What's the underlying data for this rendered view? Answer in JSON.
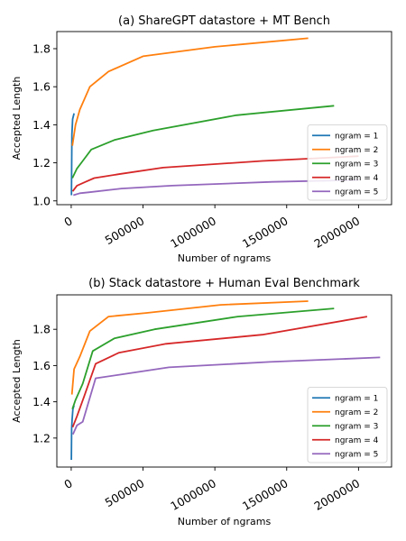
{
  "chart_data": [
    {
      "type": "line",
      "title": "(a) ShareGPT datastore + MT Bench",
      "xlabel": "Number of ngrams",
      "ylabel": "Accepted Length",
      "xlim": [
        -100000,
        2230000
      ],
      "ylim": [
        0.98,
        1.89
      ],
      "xticks": [
        0,
        500000,
        1000000,
        1500000,
        2000000
      ],
      "xtick_labels": [
        "0",
        "500000",
        "1000000",
        "1500000",
        "2000000"
      ],
      "yticks": [
        1.0,
        1.2,
        1.4,
        1.6,
        1.8
      ],
      "ytick_labels": [
        "1.0",
        "1.2",
        "1.4",
        "1.6",
        "1.8"
      ],
      "legend": "lower-right",
      "grid": false,
      "series": [
        {
          "name": "ngram = 1",
          "color": "#1f77b4",
          "x": [
            2000,
            5000,
            10000,
            20000
          ],
          "y": [
            1.03,
            1.35,
            1.43,
            1.46
          ]
        },
        {
          "name": "ngram = 2",
          "color": "#ff7f0e",
          "x": [
            8000,
            30000,
            60000,
            130000,
            260000,
            500000,
            1000000,
            1650000
          ],
          "y": [
            1.29,
            1.4,
            1.48,
            1.6,
            1.68,
            1.76,
            1.81,
            1.855
          ]
        },
        {
          "name": "ngram = 3",
          "color": "#2ca02c",
          "x": [
            8000,
            40000,
            80000,
            140000,
            300000,
            570000,
            1150000,
            1830000
          ],
          "y": [
            1.12,
            1.17,
            1.21,
            1.27,
            1.32,
            1.37,
            1.45,
            1.5
          ]
        },
        {
          "name": "ngram = 4",
          "color": "#d62728",
          "x": [
            10000,
            40000,
            100000,
            160000,
            330000,
            640000,
            1330000,
            2000000
          ],
          "y": [
            1.05,
            1.08,
            1.1,
            1.12,
            1.14,
            1.175,
            1.21,
            1.235
          ]
        },
        {
          "name": "ngram = 5",
          "color": "#9467bd",
          "x": [
            15000,
            60000,
            120000,
            350000,
            700000,
            1400000,
            2000000
          ],
          "y": [
            1.03,
            1.04,
            1.045,
            1.065,
            1.08,
            1.1,
            1.11
          ]
        }
      ]
    },
    {
      "type": "line",
      "title": "(b) Stack datastore + Human Eval Benchmark",
      "xlabel": "Number of ngrams",
      "ylabel": "Accepted Length",
      "xlim": [
        -100000,
        2230000
      ],
      "ylim": [
        1.04,
        1.99
      ],
      "xticks": [
        0,
        500000,
        1000000,
        1500000,
        2000000
      ],
      "xtick_labels": [
        "0",
        "500000",
        "1000000",
        "1500000",
        "2000000"
      ],
      "yticks": [
        1.2,
        1.4,
        1.6,
        1.8
      ],
      "ytick_labels": [
        "1.2",
        "1.4",
        "1.6",
        "1.8"
      ],
      "legend": "lower-right",
      "grid": false,
      "series": [
        {
          "name": "ngram = 1",
          "color": "#1f77b4",
          "x": [
            1000,
            3000,
            6000,
            12000,
            20000
          ],
          "y": [
            1.08,
            1.25,
            1.3,
            1.36,
            1.38
          ]
        },
        {
          "name": "ngram = 2",
          "color": "#ff7f0e",
          "x": [
            5000,
            20000,
            60000,
            130000,
            260000,
            520000,
            1040000,
            1650000
          ],
          "y": [
            1.44,
            1.58,
            1.65,
            1.79,
            1.87,
            1.89,
            1.935,
            1.955
          ]
        },
        {
          "name": "ngram = 3",
          "color": "#2ca02c",
          "x": [
            8000,
            30000,
            80000,
            150000,
            300000,
            580000,
            1160000,
            1830000
          ],
          "y": [
            1.36,
            1.41,
            1.5,
            1.68,
            1.75,
            1.8,
            1.87,
            1.915
          ]
        },
        {
          "name": "ngram = 4",
          "color": "#d62728",
          "x": [
            10000,
            40000,
            90000,
            170000,
            330000,
            660000,
            1330000,
            2060000
          ],
          "y": [
            1.26,
            1.32,
            1.43,
            1.61,
            1.67,
            1.72,
            1.77,
            1.87
          ]
        },
        {
          "name": "ngram = 5",
          "color": "#9467bd",
          "x": [
            12000,
            40000,
            80000,
            170000,
            340000,
            680000,
            1380000,
            2150000
          ],
          "y": [
            1.22,
            1.27,
            1.29,
            1.53,
            1.55,
            1.59,
            1.62,
            1.645
          ]
        }
      ]
    }
  ]
}
